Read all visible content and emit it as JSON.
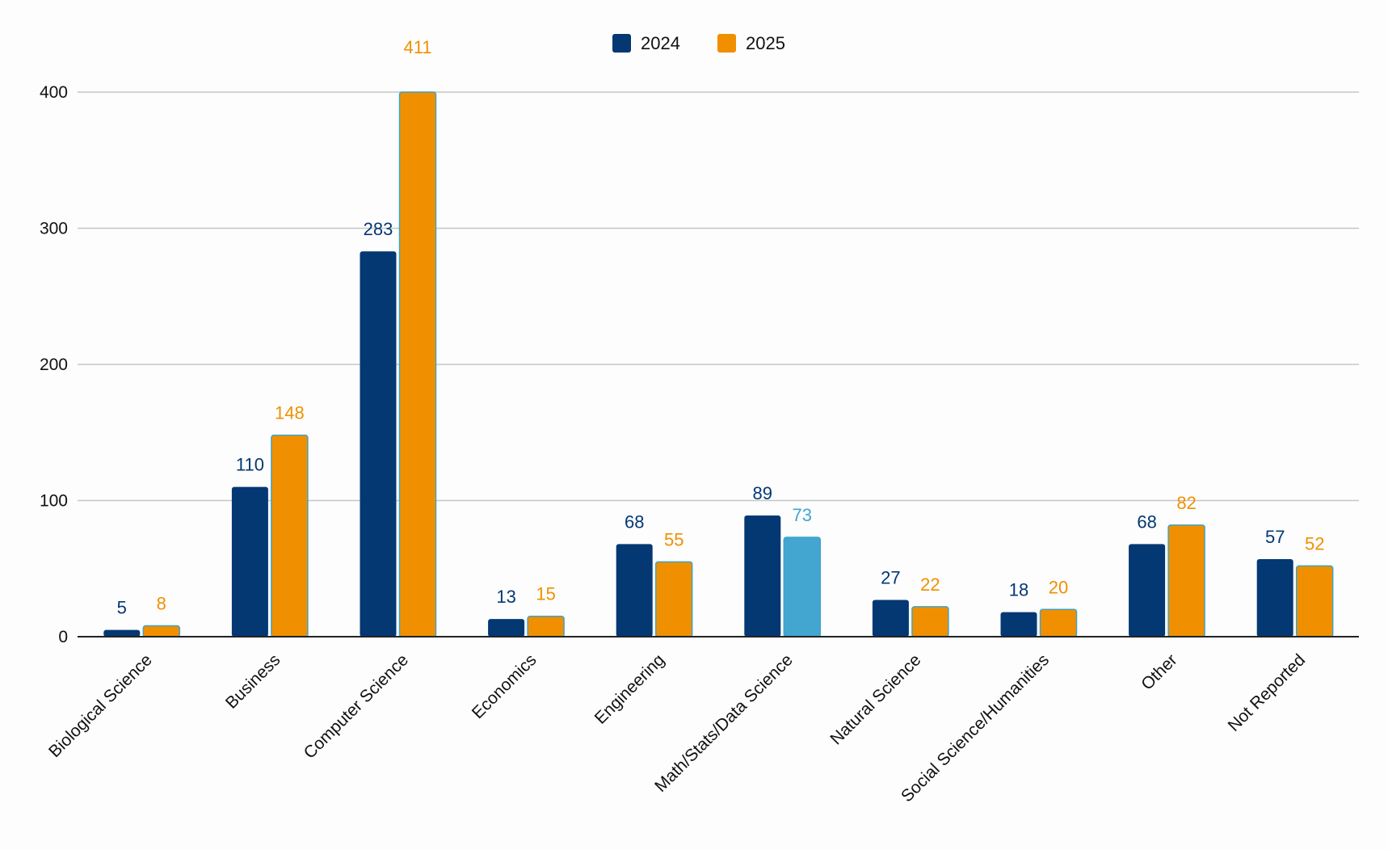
{
  "chart_data": {
    "type": "bar",
    "categories": [
      "Biological Science",
      "Business",
      "Computer Science",
      "Economics",
      "Engineering",
      "Math/Stats/Data Science",
      "Natural Science",
      "Social Science/Humanities",
      "Other",
      "Not Reported"
    ],
    "series": [
      {
        "name": "2024",
        "color": "#033873",
        "values": [
          5,
          110,
          283,
          13,
          68,
          89,
          27,
          18,
          68,
          57
        ]
      },
      {
        "name": "2025",
        "color": "#f09000",
        "highlight_color": "#42a6d0",
        "highlight_index": 5,
        "values": [
          8,
          148,
          411,
          15,
          55,
          73,
          22,
          20,
          82,
          52
        ]
      }
    ],
    "yticks": [
      "0",
      "100",
      "200",
      "300",
      "400"
    ],
    "ylim": [
      0,
      400
    ],
    "grid": true,
    "legend_position": "top-center",
    "clipped_above_max": true
  }
}
